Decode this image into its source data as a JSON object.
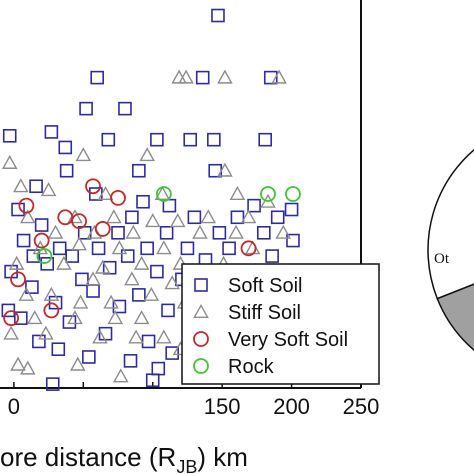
{
  "chart_data": [
    {
      "type": "scatter",
      "title": "",
      "xlabel": "ore distance (R",
      "xlabel_sub": "JB",
      "xlabel_suffix": ") km",
      "ylabel": "",
      "xlim": [
        -10,
        250
      ],
      "ylim": [
        0,
        100
      ],
      "x_ticks": [
        0,
        50,
        100,
        150,
        200,
        250
      ],
      "x_tick_labels": [
        "0",
        "",
        "",
        "150",
        "200",
        "250"
      ],
      "grid": false,
      "legend_position": "bottom-right",
      "series": [
        {
          "name": "Soft Soil",
          "marker": "square",
          "color": "#2b2ba8",
          "points": [
            [
              147,
              96
            ],
            [
              60,
              80
            ],
            [
              136,
              80
            ],
            [
              185,
              80
            ],
            [
              52,
              72
            ],
            [
              80,
              72
            ],
            [
              -3,
              65
            ],
            [
              27,
              66
            ],
            [
              37,
              62
            ],
            [
              68,
              64
            ],
            [
              103,
              64
            ],
            [
              127,
              64
            ],
            [
              144,
              64
            ],
            [
              181,
              64
            ],
            [
              38,
              56
            ],
            [
              90,
              56
            ],
            [
              145,
              56
            ],
            [
              16,
              52
            ],
            [
              59,
              50
            ],
            [
              93,
              48
            ],
            [
              112,
              47
            ],
            [
              173,
              47
            ],
            [
              200,
              46
            ],
            [
              3,
              46
            ],
            [
              85,
              44
            ],
            [
              130,
              44
            ],
            [
              161,
              44
            ],
            [
              190,
              44
            ],
            [
              20,
              42
            ],
            [
              51,
              40
            ],
            [
              75,
              40
            ],
            [
              110,
              40
            ],
            [
              148,
              40
            ],
            [
              180,
              40
            ],
            [
              7,
              38
            ],
            [
              33,
              36
            ],
            [
              61,
              36
            ],
            [
              96,
              36
            ],
            [
              125,
              36
            ],
            [
              155,
              36
            ],
            [
              201,
              38
            ],
            [
              14,
              34
            ],
            [
              42,
              34
            ],
            [
              82,
              34
            ],
            [
              138,
              33
            ],
            [
              186,
              34
            ],
            [
              24,
              32
            ],
            [
              69,
              31
            ],
            [
              103,
              30
            ],
            [
              166,
              30
            ],
            [
              -2,
              30
            ],
            [
              49,
              28
            ],
            [
              121,
              28
            ],
            [
              175,
              27
            ],
            [
              195,
              29
            ],
            [
              13,
              26
            ],
            [
              57,
              25
            ],
            [
              90,
              24
            ],
            [
              146,
              24
            ],
            [
              30,
              22
            ],
            [
              76,
              21
            ],
            [
              111,
              20
            ],
            [
              -4,
              20
            ],
            [
              5,
              18
            ],
            [
              40,
              17
            ],
            [
              128,
              17
            ],
            [
              159,
              17
            ],
            [
              192,
              18
            ],
            [
              66,
              14
            ],
            [
              97,
              12
            ],
            [
              18,
              12
            ],
            [
              183,
              14
            ],
            [
              32,
              10
            ],
            [
              114,
              9
            ],
            [
              144,
              10
            ],
            [
              54,
              8
            ],
            [
              84,
              7
            ],
            [
              171,
              9
            ],
            [
              104,
              5
            ],
            [
              154,
              4
            ],
            [
              100,
              2
            ],
            [
              28,
              1
            ],
            [
              197,
              4
            ]
          ]
        },
        {
          "name": "Stiff Soil",
          "marker": "triangle",
          "color": "#8c8c8c",
          "points": [
            [
              119,
              80
            ],
            [
              124,
              80
            ],
            [
              152,
              80
            ],
            [
              191,
              80
            ],
            [
              50,
              60
            ],
            [
              96,
              60
            ],
            [
              -3,
              58
            ],
            [
              152,
              56
            ],
            [
              5,
              52
            ],
            [
              25,
              51
            ],
            [
              66,
              50
            ],
            [
              107,
              50
            ],
            [
              161,
              50
            ],
            [
              183,
              48
            ],
            [
              10,
              44
            ],
            [
              44,
              44
            ],
            [
              72,
              44
            ],
            [
              100,
              43
            ],
            [
              118,
              43
            ],
            [
              140,
              44
            ],
            [
              169,
              44
            ],
            [
              30,
              40
            ],
            [
              58,
              40
            ],
            [
              86,
              40
            ],
            [
              134,
              40
            ],
            [
              160,
              40
            ],
            [
              194,
              40
            ],
            [
              19,
              36
            ],
            [
              47,
              37
            ],
            [
              76,
              36
            ],
            [
              108,
              36
            ],
            [
              172,
              36
            ],
            [
              2,
              32
            ],
            [
              36,
              32
            ],
            [
              64,
              31
            ],
            [
              92,
              32
            ],
            [
              120,
              32
            ],
            [
              151,
              32
            ],
            [
              163,
              29
            ],
            [
              57,
              28
            ],
            [
              85,
              28
            ],
            [
              114,
              27
            ],
            [
              185,
              28
            ],
            [
              9,
              24
            ],
            [
              27,
              24
            ],
            [
              48,
              22
            ],
            [
              70,
              22
            ],
            [
              99,
              24
            ],
            [
              123,
              22
            ],
            [
              137,
              24
            ],
            [
              165,
              22
            ],
            [
              182,
              23
            ],
            [
              15,
              18
            ],
            [
              44,
              18
            ],
            [
              73,
              18
            ],
            [
              92,
              18
            ],
            [
              134,
              17
            ],
            [
              152,
              18
            ],
            [
              -2,
              14
            ],
            [
              23,
              14
            ],
            [
              62,
              13
            ],
            [
              88,
              13
            ],
            [
              108,
              13
            ],
            [
              120,
              10
            ],
            [
              161,
              10
            ],
            [
              10,
              5
            ],
            [
              3,
              6
            ],
            [
              46,
              6
            ],
            [
              77,
              3
            ],
            [
              129,
              4
            ],
            [
              145,
              6
            ]
          ]
        },
        {
          "name": "Very Soft Soil",
          "marker": "circle",
          "color": "#c62828",
          "points": [
            [
              57,
              52
            ],
            [
              75,
              49
            ],
            [
              9,
              47
            ],
            [
              37,
              44
            ],
            [
              47,
              43
            ],
            [
              64,
              41
            ],
            [
              20,
              38
            ],
            [
              169,
              36
            ],
            [
              3,
              28
            ],
            [
              27,
              20
            ],
            [
              -2,
              18
            ]
          ]
        },
        {
          "name": "Rock",
          "marker": "circle",
          "color": "#3fc62c",
          "points": [
            [
              108,
              50
            ],
            [
              183,
              50
            ],
            [
              201,
              50
            ],
            [
              22,
              34
            ],
            [
              170,
              24
            ],
            [
              201,
              27
            ]
          ]
        }
      ]
    },
    {
      "type": "pie",
      "title": "",
      "slices": [
        {
          "label": "",
          "color": "#000000",
          "value": 45
        },
        {
          "label": "",
          "color": "#ffffff",
          "value": 10
        },
        {
          "label": "Ot",
          "color": "#ffffff",
          "value": 12
        },
        {
          "label": "",
          "color": "#a0a0a0",
          "value": 12
        },
        {
          "label": "",
          "color": "#ffffff",
          "value": 21
        }
      ]
    }
  ]
}
